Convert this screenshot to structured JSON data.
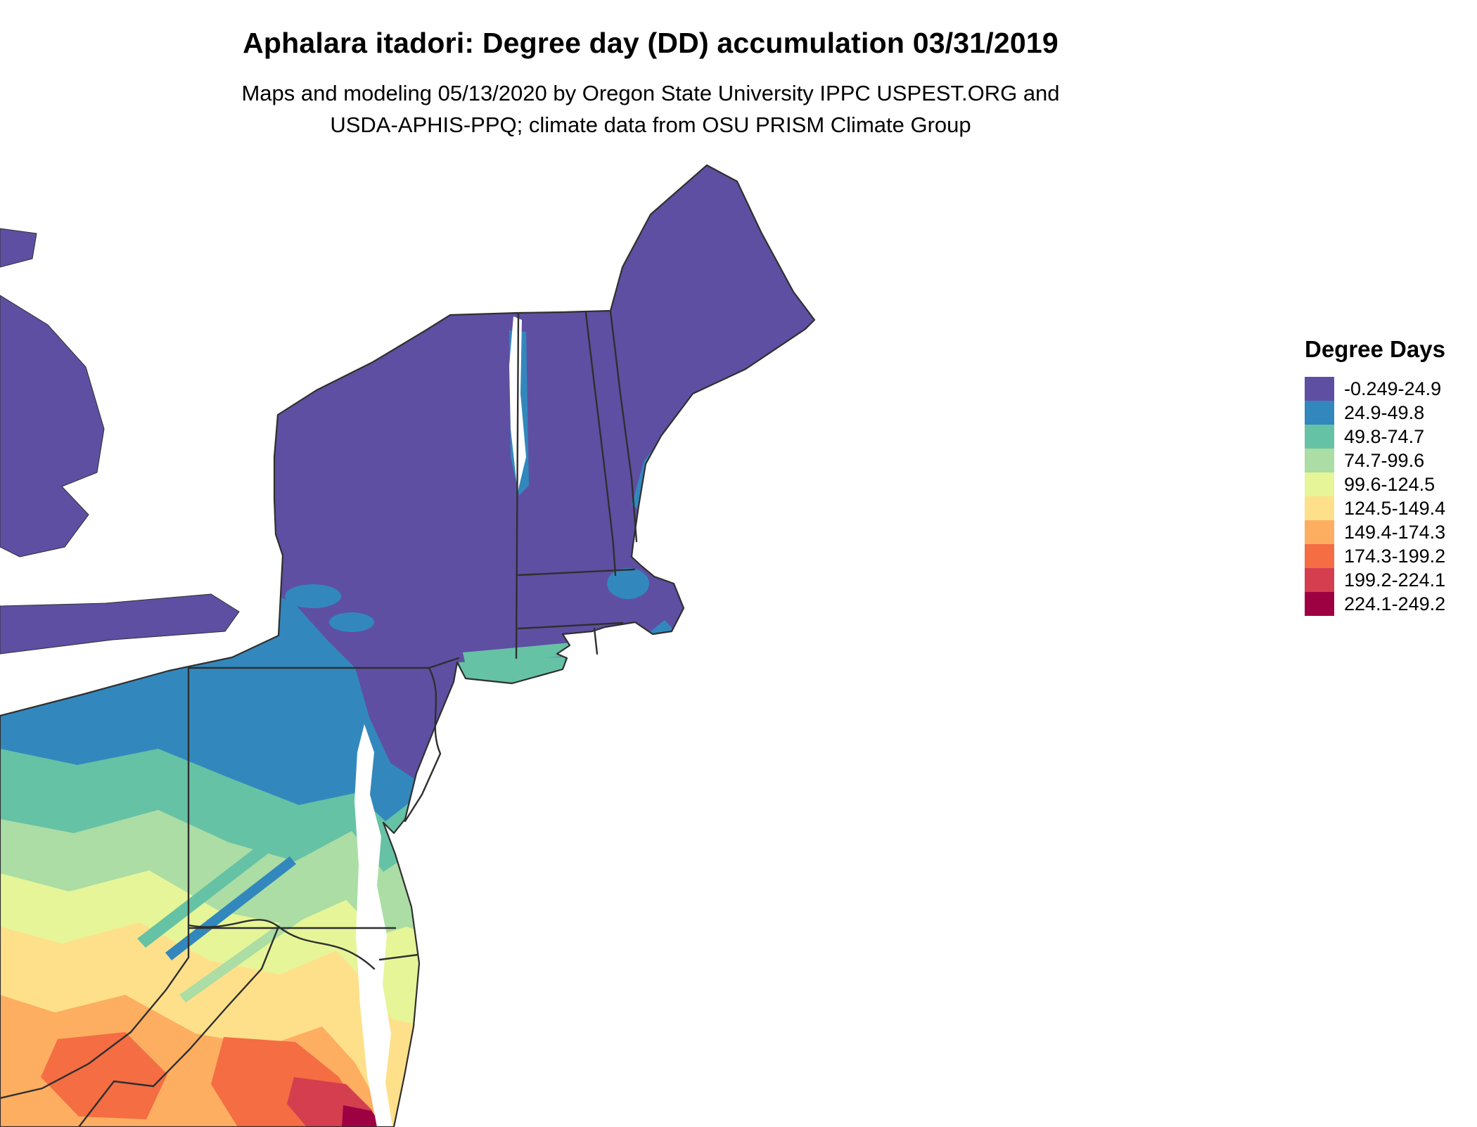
{
  "header": {
    "title": "Aphalara itadori: Degree day (DD) accumulation 03/31/2019",
    "subtitle_line1": "Maps and modeling 05/13/2020 by Oregon State University IPPC USPEST.ORG and",
    "subtitle_line2": "USDA-APHIS-PPQ; climate data from OSU PRISM Climate Group"
  },
  "legend": {
    "title": "Degree Days",
    "entries": [
      {
        "label": "-0.249-24.9",
        "color": "#5E4FA2"
      },
      {
        "label": "24.9-49.8",
        "color": "#3288BD"
      },
      {
        "label": "49.8-74.7",
        "color": "#66C2A5"
      },
      {
        "label": "74.7-99.6",
        "color": "#ABDDA4"
      },
      {
        "label": "99.6-124.5",
        "color": "#E6F598"
      },
      {
        "label": "124.5-149.4",
        "color": "#FEE08B"
      },
      {
        "label": "149.4-174.3",
        "color": "#FDAE61"
      },
      {
        "label": "174.3-199.2",
        "color": "#F46D43"
      },
      {
        "label": "199.2-224.1",
        "color": "#D53E4F"
      },
      {
        "label": "224.1-249.2",
        "color": "#9E0142"
      }
    ]
  },
  "map": {
    "border_color": "#2F2F2F",
    "water_color": "#FFFFFF"
  },
  "chart_data": {
    "type": "heatmap",
    "title": "Aphalara itadori: Degree day (DD) accumulation 03/31/2019",
    "legend_title": "Degree Days",
    "bins": [
      {
        "label": "-0.249-24.9",
        "min": -0.249,
        "max": 24.9,
        "color": "#5E4FA2"
      },
      {
        "label": "24.9-49.8",
        "min": 24.9,
        "max": 49.8,
        "color": "#3288BD"
      },
      {
        "label": "49.8-74.7",
        "min": 49.8,
        "max": 74.7,
        "color": "#66C2A5"
      },
      {
        "label": "74.7-99.6",
        "min": 74.7,
        "max": 99.6,
        "color": "#ABDDA4"
      },
      {
        "label": "99.6-124.5",
        "min": 99.6,
        "max": 124.5,
        "color": "#E6F598"
      },
      {
        "label": "124.5-149.4",
        "min": 124.5,
        "max": 149.4,
        "color": "#FEE08B"
      },
      {
        "label": "149.4-174.3",
        "min": 149.4,
        "max": 174.3,
        "color": "#FDAE61"
      },
      {
        "label": "174.3-199.2",
        "min": 174.3,
        "max": 199.2,
        "color": "#F46D43"
      },
      {
        "label": "199.2-224.1",
        "min": 199.2,
        "max": 224.1,
        "color": "#D53E4F"
      },
      {
        "label": "224.1-249.2",
        "min": 224.1,
        "max": 249.2,
        "color": "#9E0142"
      }
    ],
    "value_range": [
      -0.249,
      249.2
    ],
    "spatial_pattern": "Lowest degree-day accumulation (purple) across Maine, Vermont, New Hampshire and upstate New York; values increase southwestward through blue and green bands over Pennsylvania and New Jersey to yellow, orange and red maxima in West Virginia and southern Virginia."
  }
}
